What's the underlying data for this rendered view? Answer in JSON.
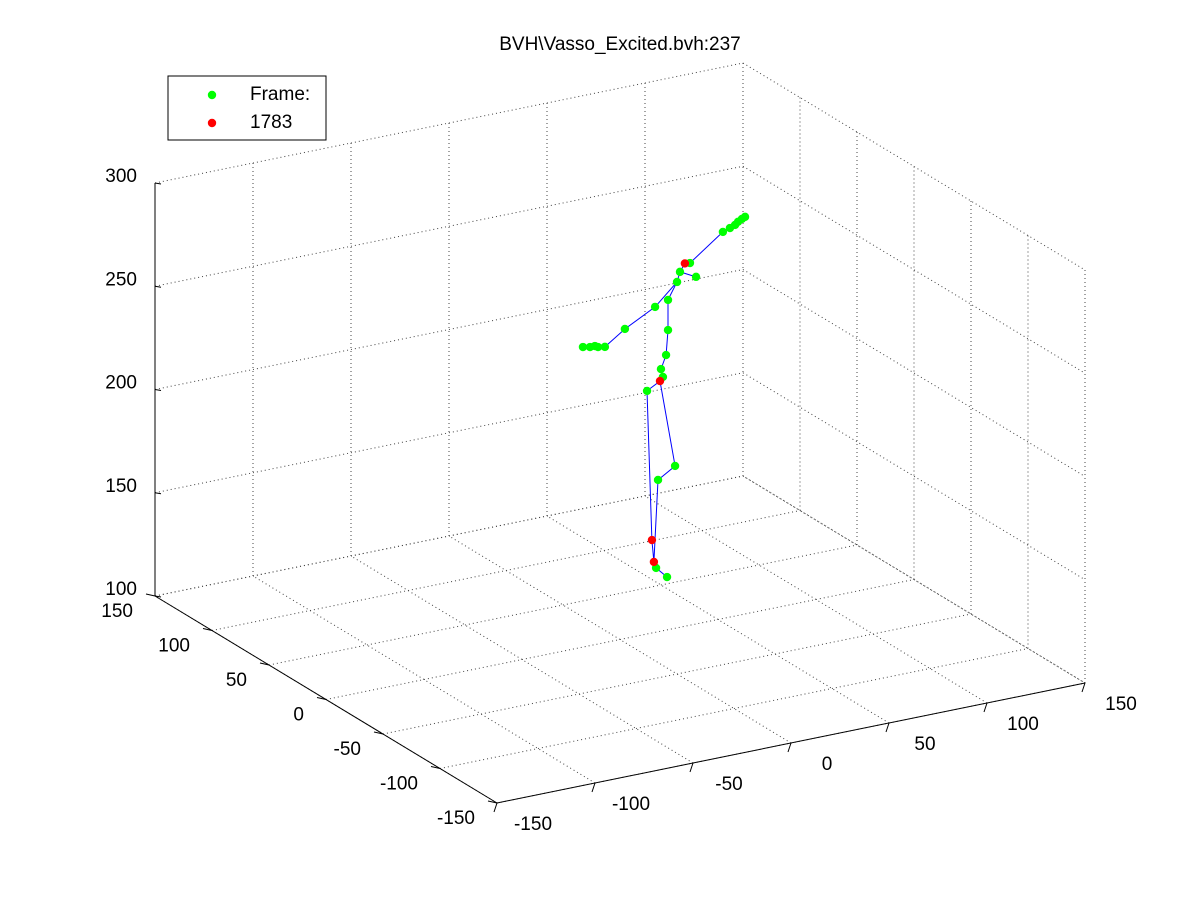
{
  "chart_data": {
    "type": "scatter3d",
    "title": "BVH\\Vasso_Excited.bvh:237",
    "xlim": [
      -150,
      150
    ],
    "ylim": [
      -150,
      150
    ],
    "zlim": [
      100,
      300
    ],
    "xticks": [
      -150,
      -100,
      -50,
      0,
      50,
      100,
      150
    ],
    "yticks": [
      -150,
      -100,
      -50,
      0,
      50,
      100,
      150
    ],
    "zticks": [
      100,
      150,
      200,
      250,
      300
    ],
    "grid": true,
    "legend": "upper left",
    "series": [
      {
        "name": "Frame:",
        "color": "#00ff00",
        "x": [
          24.0,
          18.4,
          19.4,
          28.1,
          13.8,
          21.9,
          20.9,
          23.5,
          24.5,
          24.5,
          17.9,
          2.5,
          -7.7,
          -11.2,
          -15.3,
          -18.9,
          -12.8,
          29.1,
          30.6,
          38.8,
          35.7,
          52.5,
          56.1,
          58.7,
          60.2,
          62.2,
          63.8
        ],
        "y": [
          0,
          0,
          0,
          0,
          0,
          0,
          0,
          0,
          0,
          0,
          0,
          0,
          0,
          0,
          0,
          0,
          0,
          0,
          0,
          0,
          0,
          0,
          0,
          0,
          0,
          0,
          0
        ],
        "z": [
          125.6,
          131.1,
          173.5,
          178.6,
          217.7,
          222.9,
          226.9,
          233.2,
          245.1,
          259.7,
          257.6,
          249.9,
          243.2,
          243.8,
          244.6,
          245.3,
          244.6,
          267.5,
          272.1,
          268.1,
          275.4,
          287.2,
          288.4,
          289.4,
          290.6,
          291.6,
          292.3
        ]
      },
      {
        "name": "1783",
        "color": "#ff0000",
        "x": [
          17.3,
          16.3,
          20.4,
          33.1
        ],
        "y": [
          0,
          0,
          0,
          0
        ],
        "z": [
          134.2,
          145.0,
          221.2,
          275.7
        ]
      }
    ],
    "lines": {
      "color": "#0000ff",
      "x": [
        24.0,
        18.4,
        17.3,
        16.3,
        13.8,
        20.4,
        28.1,
        19.4,
        17.3,
        null,
        20.4,
        21.9,
        20.9,
        23.5,
        24.5,
        24.5,
        29.1,
        30.6,
        33.1,
        35.7,
        52.5,
        63.8,
        null,
        29.1,
        17.9,
        2.5,
        -7.7,
        -18.9,
        null,
        30.6,
        38.8
      ],
      "y": [
        0,
        0,
        0,
        0,
        0,
        0,
        0,
        0,
        0,
        null,
        0,
        0,
        0,
        0,
        0,
        0,
        0,
        0,
        0,
        0,
        0,
        0,
        null,
        0,
        0,
        0,
        0,
        0,
        null,
        0,
        0
      ],
      "z": [
        125.6,
        131.1,
        134.2,
        145.0,
        217.7,
        221.2,
        178.6,
        173.5,
        134.2,
        null,
        221.2,
        222.9,
        226.9,
        233.2,
        245.1,
        259.7,
        267.5,
        272.1,
        275.7,
        275.4,
        287.2,
        292.3,
        null,
        267.5,
        257.6,
        249.9,
        243.2,
        245.3,
        null,
        272.1,
        268.1
      ]
    }
  }
}
